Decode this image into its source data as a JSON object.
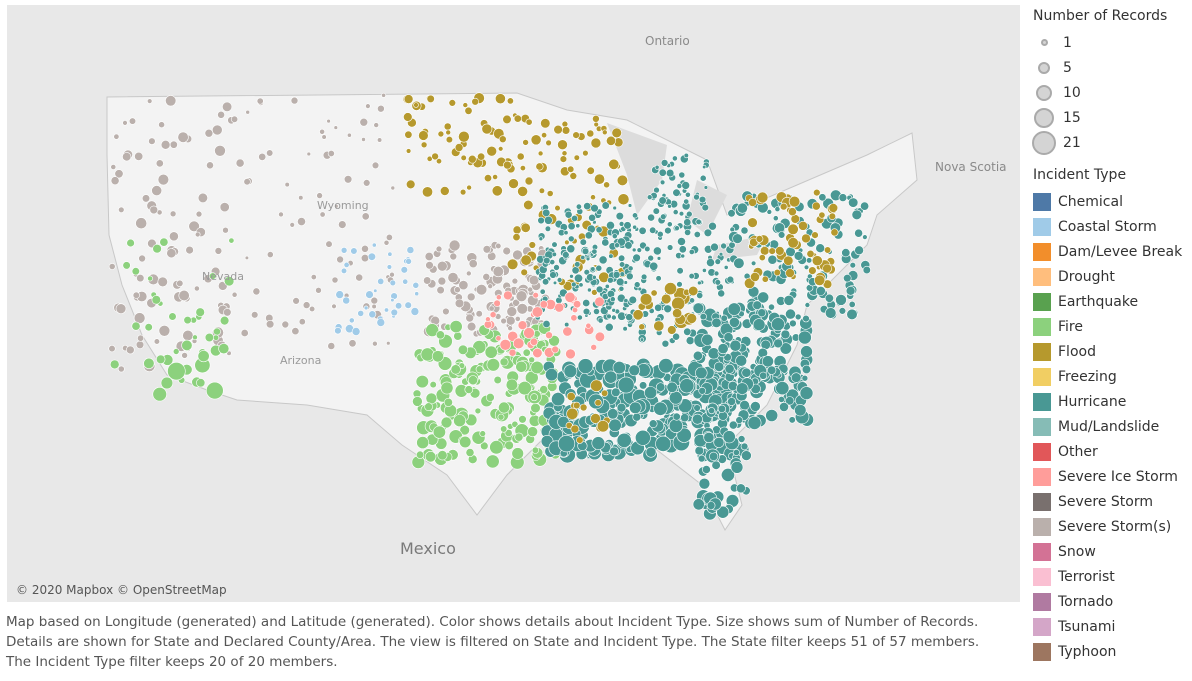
{
  "map": {
    "place_labels": {
      "ontario": "Ontario",
      "nova_scotia": "Nova Scotia",
      "mexico": "Mexico",
      "wyoming": "Wyoming",
      "nevada": "Nevada",
      "arizona": "Arizona"
    },
    "attribution": "© 2020 Mapbox © OpenStreetMap",
    "land_color": "#e8e8e8",
    "us_land_color": "#f3f3f3",
    "border_color": "#ffffff"
  },
  "caption": {
    "line1": "Map based on Longitude (generated) and Latitude (generated).  Color shows details about Incident Type.  Size shows sum of Number of Records.",
    "line2": "Details are shown for State and Declared County/Area. The view is filtered on State and Incident Type. The State filter keeps 51 of 57 members.",
    "line3": "The Incident Type filter keeps 20 of 20 members."
  },
  "legend": {
    "size_title": "Number of Records",
    "sizes": [
      {
        "label": "1"
      },
      {
        "label": "5"
      },
      {
        "label": "10"
      },
      {
        "label": "15"
      },
      {
        "label": "21"
      }
    ],
    "type_title": "Incident Type",
    "types": [
      {
        "label": "Chemical",
        "color": "#4e79a7"
      },
      {
        "label": "Coastal Storm",
        "color": "#a0cbe8"
      },
      {
        "label": "Dam/Levee Break",
        "color": "#f28e2b"
      },
      {
        "label": "Drought",
        "color": "#ffbe7d"
      },
      {
        "label": "Earthquake",
        "color": "#59a14f"
      },
      {
        "label": "Fire",
        "color": "#8cd17d"
      },
      {
        "label": "Flood",
        "color": "#b6992d"
      },
      {
        "label": "Freezing",
        "color": "#f1ce63"
      },
      {
        "label": "Hurricane",
        "color": "#499894"
      },
      {
        "label": "Mud/Landslide",
        "color": "#86bcb6"
      },
      {
        "label": "Other",
        "color": "#e15759"
      },
      {
        "label": "Severe Ice Storm",
        "color": "#ff9d9a"
      },
      {
        "label": "Severe Storm",
        "color": "#79706e"
      },
      {
        "label": "Severe Storm(s)",
        "color": "#bab0ac"
      },
      {
        "label": "Snow",
        "color": "#d37295"
      },
      {
        "label": "Terrorist",
        "color": "#fabfd2"
      },
      {
        "label": "Tornado",
        "color": "#b07aa1"
      },
      {
        "label": "Tsunami",
        "color": "#d4a6c8"
      },
      {
        "label": "Typhoon",
        "color": "#9d7660"
      }
    ]
  }
}
